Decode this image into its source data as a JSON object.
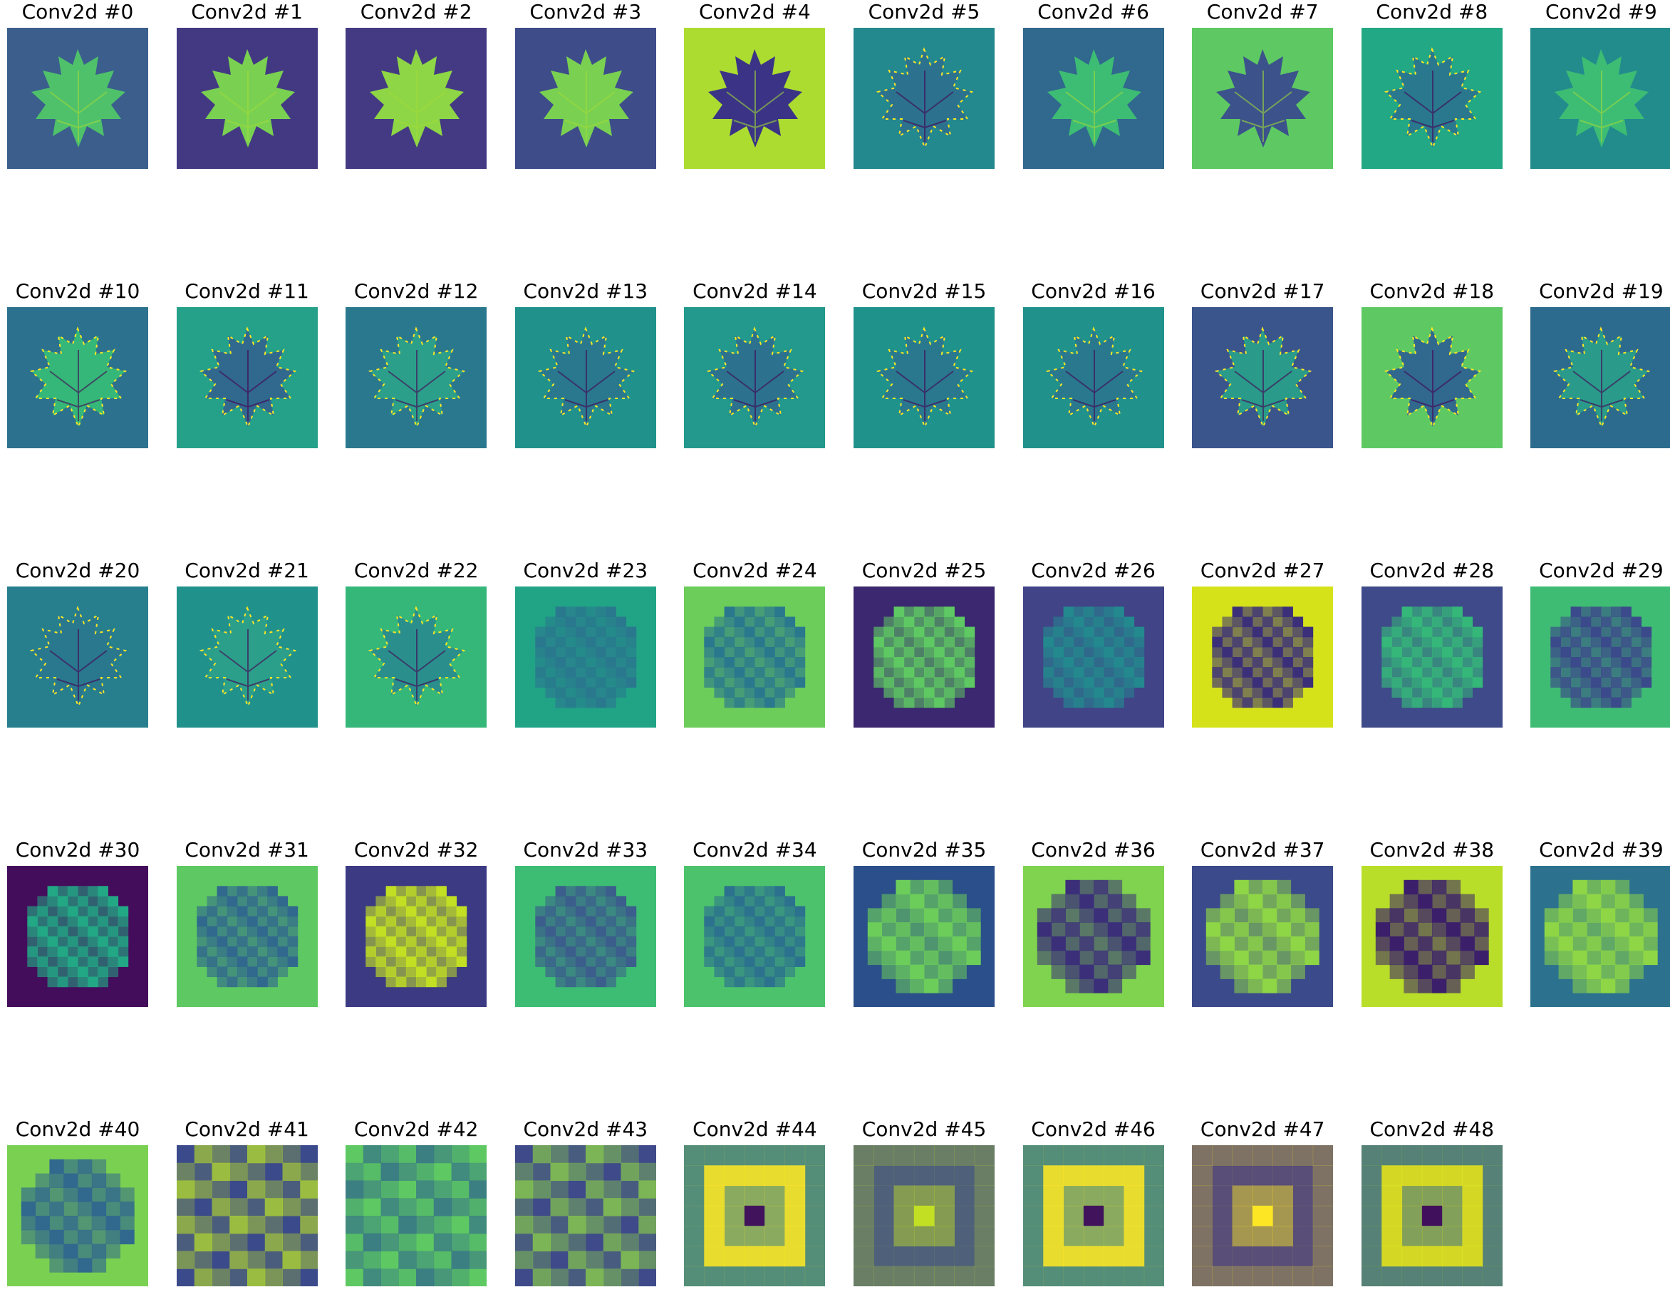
{
  "figure": {
    "panels": [
      {
        "title": "Conv2d #0",
        "bg": "#3b5e8c",
        "leaf": "#4fc16b",
        "pattern": "smooth"
      },
      {
        "title": "Conv2d #1",
        "bg": "#433983",
        "leaf": "#7ad151",
        "pattern": "smooth"
      },
      {
        "title": "Conv2d #2",
        "bg": "#443a83",
        "leaf": "#8ed645",
        "pattern": "smooth"
      },
      {
        "title": "Conv2d #3",
        "bg": "#3e4c8a",
        "leaf": "#7ad151",
        "pattern": "smooth"
      },
      {
        "title": "Conv2d #4",
        "bg": "#addc30",
        "leaf": "#3b3486",
        "pattern": "smooth"
      },
      {
        "title": "Conv2d #5",
        "bg": "#23898e",
        "leaf": "#2c728e",
        "pattern": "edges"
      },
      {
        "title": "Conv2d #6",
        "bg": "#31688e",
        "leaf": "#3dbc74",
        "pattern": "smooth"
      },
      {
        "title": "Conv2d #7",
        "bg": "#5ec962",
        "leaf": "#3b528b",
        "pattern": "smooth"
      },
      {
        "title": "Conv2d #8",
        "bg": "#22a884",
        "leaf": "#2a788e",
        "pattern": "edges"
      },
      {
        "title": "Conv2d #9",
        "bg": "#228c8d",
        "leaf": "#3dbc74",
        "pattern": "smooth"
      },
      {
        "title": "Conv2d #10",
        "bg": "#2c728e",
        "leaf": "#35b779",
        "pattern": "edges"
      },
      {
        "title": "Conv2d #11",
        "bg": "#25a18a",
        "leaf": "#31688e",
        "pattern": "edges"
      },
      {
        "title": "Conv2d #12",
        "bg": "#2a788e",
        "leaf": "#2c9f8b",
        "pattern": "edges"
      },
      {
        "title": "Conv2d #13",
        "bg": "#21918c",
        "leaf": "#2a788e",
        "pattern": "edges"
      },
      {
        "title": "Conv2d #14",
        "bg": "#22998c",
        "leaf": "#2c728e",
        "pattern": "edges"
      },
      {
        "title": "Conv2d #15",
        "bg": "#20928c",
        "leaf": "#2a788e",
        "pattern": "edges"
      },
      {
        "title": "Conv2d #16",
        "bg": "#21918c",
        "leaf": "#2a788e",
        "pattern": "edges"
      },
      {
        "title": "Conv2d #17",
        "bg": "#3a548c",
        "leaf": "#2a9a8a",
        "pattern": "edges"
      },
      {
        "title": "Conv2d #18",
        "bg": "#5ec962",
        "leaf": "#31688e",
        "pattern": "edges"
      },
      {
        "title": "Conv2d #19",
        "bg": "#2c6b8e",
        "leaf": "#2a9a8a",
        "pattern": "edges"
      },
      {
        "title": "Conv2d #20",
        "bg": "#277f8e",
        "leaf": "#2a788e",
        "pattern": "edges"
      },
      {
        "title": "Conv2d #21",
        "bg": "#21918c",
        "leaf": "#2c9f8b",
        "pattern": "edges"
      },
      {
        "title": "Conv2d #22",
        "bg": "#35b779",
        "leaf": "#2a8f8c",
        "pattern": "edges"
      },
      {
        "title": "Conv2d #23",
        "bg": "#21a386",
        "leaf": "#2a788e",
        "pattern": "blocky"
      },
      {
        "title": "Conv2d #24",
        "bg": "#6ccd5a",
        "leaf": "#2a788e",
        "pattern": "blocky"
      },
      {
        "title": "Conv2d #25",
        "bg": "#3b2870",
        "leaf": "#5ec962",
        "pattern": "blocky"
      },
      {
        "title": "Conv2d #26",
        "bg": "#414487",
        "leaf": "#23898e",
        "pattern": "blocky"
      },
      {
        "title": "Conv2d #27",
        "bg": "#d5e21a",
        "leaf": "#3b2f7a",
        "pattern": "blocky"
      },
      {
        "title": "Conv2d #28",
        "bg": "#3e4a89",
        "leaf": "#35b779",
        "pattern": "blocky"
      },
      {
        "title": "Conv2d #29",
        "bg": "#3fbc73",
        "leaf": "#3b4a8a",
        "pattern": "blocky"
      },
      {
        "title": "Conv2d #30",
        "bg": "#440d5c",
        "leaf": "#22a884",
        "pattern": "blocky"
      },
      {
        "title": "Conv2d #31",
        "bg": "#5ec962",
        "leaf": "#31688e",
        "pattern": "blocky"
      },
      {
        "title": "Conv2d #32",
        "bg": "#3b3a83",
        "leaf": "#c2df23",
        "pattern": "blocky"
      },
      {
        "title": "Conv2d #33",
        "bg": "#3dbc74",
        "leaf": "#3b5e8c",
        "pattern": "blocky"
      },
      {
        "title": "Conv2d #34",
        "bg": "#4cc26c",
        "leaf": "#2c728e",
        "pattern": "blocky"
      },
      {
        "title": "Conv2d #35",
        "bg": "#2a4f8a",
        "leaf": "#6ccd5a",
        "pattern": "coarse"
      },
      {
        "title": "Conv2d #36",
        "bg": "#7fd34e",
        "leaf": "#3b2f7a",
        "pattern": "coarse"
      },
      {
        "title": "Conv2d #37",
        "bg": "#3b4a8a",
        "leaf": "#8ed645",
        "pattern": "coarse"
      },
      {
        "title": "Conv2d #38",
        "bg": "#b8de29",
        "leaf": "#3b1f6b",
        "pattern": "coarse"
      },
      {
        "title": "Conv2d #39",
        "bg": "#2c728e",
        "leaf": "#8ed645",
        "pattern": "coarse"
      },
      {
        "title": "Conv2d #40",
        "bg": "#7ad151",
        "leaf": "#31688e",
        "pattern": "coarse"
      },
      {
        "title": "Conv2d #41",
        "bg": "#3b4a8a",
        "leaf": "#b8de29",
        "pattern": "grid"
      },
      {
        "title": "Conv2d #42",
        "bg": "#5ec962",
        "leaf": "#31688e",
        "pattern": "grid"
      },
      {
        "title": "Conv2d #43",
        "bg": "#3e4a89",
        "leaf": "#8ed645",
        "pattern": "grid"
      },
      {
        "title": "Conv2d #44",
        "bg": "#2a788e",
        "leaf": "#fde725",
        "pattern": "ring"
      },
      {
        "title": "Conv2d #45",
        "bg": "#3b4a8a",
        "leaf": "#c2df23",
        "pattern": "ring"
      },
      {
        "title": "Conv2d #46",
        "bg": "#2a788e",
        "leaf": "#fde725",
        "pattern": "ring"
      },
      {
        "title": "Conv2d #47",
        "bg": "#3b3486",
        "leaf": "#fde725",
        "pattern": "ring"
      },
      {
        "title": "Conv2d #48",
        "bg": "#31688e",
        "leaf": "#e7e419",
        "pattern": "ring"
      }
    ]
  }
}
